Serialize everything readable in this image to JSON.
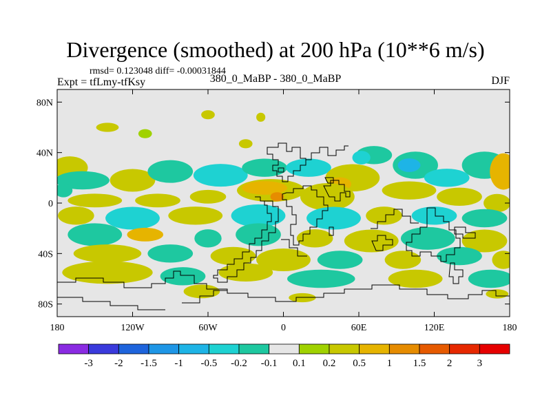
{
  "header": {
    "title": "Divergence (smoothed) at 200 hPa (10**6 m/s)",
    "stats": "rmsd= 0.123048 diff= -0.00031844",
    "experiment": "Expt = tfLmy-tfKsy",
    "comparison": "380_0_MaBP - 380_0_MaBP",
    "season": "DJF"
  },
  "chart_data": {
    "type": "heatmap",
    "title": "Divergence (smoothed) at 200 hPa (10**6 m/s)",
    "x_ticks": [
      {
        "value": -180,
        "label": "180"
      },
      {
        "value": -120,
        "label": "120W"
      },
      {
        "value": -60,
        "label": "60W"
      },
      {
        "value": 0,
        "label": "0"
      },
      {
        "value": 60,
        "label": "60E"
      },
      {
        "value": 120,
        "label": "120E"
      },
      {
        "value": 180,
        "label": "180"
      }
    ],
    "y_ticks": [
      {
        "value": 80,
        "label": "80N"
      },
      {
        "value": 40,
        "label": "40N"
      },
      {
        "value": 0,
        "label": "0"
      },
      {
        "value": -40,
        "label": "40S"
      },
      {
        "value": -80,
        "label": "80S"
      }
    ],
    "xlim": [
      -180,
      180
    ],
    "ylim": [
      -90,
      90
    ],
    "colorbar": {
      "labels": [
        "-3",
        "-2",
        "-1.5",
        "-1",
        "-0.5",
        "-0.2",
        "-0.1",
        "0.1",
        "0.2",
        "0.5",
        "1",
        "1.5",
        "2",
        "3"
      ],
      "colors": [
        "#8a2be2",
        "#3a3adc",
        "#1e64dc",
        "#1e96e6",
        "#1eb4e6",
        "#1ed2d2",
        "#1ec8a0",
        "#e6e6e6",
        "#a0d200",
        "#c8c800",
        "#e6b400",
        "#e68c00",
        "#e65a00",
        "#e62800",
        "#e60000"
      ]
    },
    "regions": [
      {
        "lon": -60,
        "lat": 70,
        "rx": 3,
        "ry": 2,
        "level": 9
      },
      {
        "lon": -18,
        "lat": 68,
        "rx": 2,
        "ry": 2,
        "level": 9
      },
      {
        "lon": -140,
        "lat": 60,
        "rx": 5,
        "ry": 2,
        "level": 9
      },
      {
        "lon": -110,
        "lat": 55,
        "rx": 3,
        "ry": 2,
        "level": 8
      },
      {
        "lon": -30,
        "lat": 47,
        "rx": 3,
        "ry": 2,
        "level": 9
      },
      {
        "lon": 72,
        "lat": 38,
        "rx": 8,
        "ry": 4,
        "level": 6
      },
      {
        "lon": 62,
        "lat": 36,
        "rx": 4,
        "ry": 3,
        "level": 5
      },
      {
        "lon": 105,
        "lat": 30,
        "rx": 10,
        "ry": 6,
        "level": 6
      },
      {
        "lon": 100,
        "lat": 30,
        "rx": 5,
        "ry": 3,
        "level": 4
      },
      {
        "lon": 160,
        "lat": 30,
        "rx": 10,
        "ry": 6,
        "level": 6
      },
      {
        "lon": 130,
        "lat": 20,
        "rx": 10,
        "ry": 4,
        "level": 5
      },
      {
        "lon": 175,
        "lat": 25,
        "rx": 6,
        "ry": 8,
        "level": 10
      },
      {
        "lon": -170,
        "lat": 28,
        "rx": 8,
        "ry": 5,
        "level": 9
      },
      {
        "lon": -160,
        "lat": 18,
        "rx": 12,
        "ry": 4,
        "level": 6
      },
      {
        "lon": -120,
        "lat": 18,
        "rx": 10,
        "ry": 5,
        "level": 9
      },
      {
        "lon": -90,
        "lat": 25,
        "rx": 10,
        "ry": 5,
        "level": 6
      },
      {
        "lon": -50,
        "lat": 22,
        "rx": 12,
        "ry": 5,
        "level": 5
      },
      {
        "lon": -15,
        "lat": 28,
        "rx": 10,
        "ry": 4,
        "level": 6
      },
      {
        "lon": 20,
        "lat": 28,
        "rx": 10,
        "ry": 4,
        "level": 5
      },
      {
        "lon": 55,
        "lat": 20,
        "rx": 12,
        "ry": 6,
        "level": 9
      },
      {
        "lon": 45,
        "lat": 15,
        "rx": 5,
        "ry": 3,
        "level": 10
      },
      {
        "lon": -10,
        "lat": 10,
        "rx": 15,
        "ry": 5,
        "level": 9
      },
      {
        "lon": -15,
        "lat": 12,
        "rx": 10,
        "ry": 3,
        "level": 10
      },
      {
        "lon": -5,
        "lat": 5,
        "rx": 3,
        "ry": 2,
        "level": 11
      },
      {
        "lon": 35,
        "lat": 5,
        "rx": 12,
        "ry": 6,
        "level": 9
      },
      {
        "lon": 100,
        "lat": 10,
        "rx": 12,
        "ry": 4,
        "level": 9
      },
      {
        "lon": 140,
        "lat": 5,
        "rx": 10,
        "ry": 4,
        "level": 9
      },
      {
        "lon": 170,
        "lat": 0,
        "rx": 6,
        "ry": 4,
        "level": 9
      },
      {
        "lon": -150,
        "lat": 2,
        "rx": 12,
        "ry": 3,
        "level": 9
      },
      {
        "lon": -100,
        "lat": 2,
        "rx": 10,
        "ry": 3,
        "level": 9
      },
      {
        "lon": -60,
        "lat": 5,
        "rx": 8,
        "ry": 3,
        "level": 9
      },
      {
        "lon": -175,
        "lat": 10,
        "rx": 4,
        "ry": 3,
        "level": 6
      },
      {
        "lon": -165,
        "lat": -10,
        "rx": 8,
        "ry": 4,
        "level": 9
      },
      {
        "lon": -120,
        "lat": -12,
        "rx": 12,
        "ry": 5,
        "level": 5
      },
      {
        "lon": -70,
        "lat": -10,
        "rx": 12,
        "ry": 4,
        "level": 9
      },
      {
        "lon": -20,
        "lat": -10,
        "rx": 12,
        "ry": 5,
        "level": 5
      },
      {
        "lon": 40,
        "lat": -12,
        "rx": 12,
        "ry": 5,
        "level": 5
      },
      {
        "lon": 80,
        "lat": -10,
        "rx": 8,
        "ry": 4,
        "level": 9
      },
      {
        "lon": 120,
        "lat": -10,
        "rx": 10,
        "ry": 4,
        "level": 5
      },
      {
        "lon": 160,
        "lat": -12,
        "rx": 10,
        "ry": 4,
        "level": 6
      },
      {
        "lon": -150,
        "lat": -25,
        "rx": 12,
        "ry": 5,
        "level": 6
      },
      {
        "lon": -110,
        "lat": -25,
        "rx": 8,
        "ry": 3,
        "level": 10
      },
      {
        "lon": -60,
        "lat": -28,
        "rx": 6,
        "ry": 4,
        "level": 6
      },
      {
        "lon": -20,
        "lat": -25,
        "rx": 10,
        "ry": 5,
        "level": 6
      },
      {
        "lon": 25,
        "lat": -28,
        "rx": 8,
        "ry": 4,
        "level": 9
      },
      {
        "lon": 70,
        "lat": -30,
        "rx": 12,
        "ry": 5,
        "level": 9
      },
      {
        "lon": 115,
        "lat": -28,
        "rx": 12,
        "ry": 5,
        "level": 6
      },
      {
        "lon": 160,
        "lat": -30,
        "rx": 10,
        "ry": 5,
        "level": 9
      },
      {
        "lon": -140,
        "lat": -40,
        "rx": 15,
        "ry": 4,
        "level": 9
      },
      {
        "lon": -90,
        "lat": -40,
        "rx": 10,
        "ry": 4,
        "level": 6
      },
      {
        "lon": -40,
        "lat": -42,
        "rx": 10,
        "ry": 4,
        "level": 9
      },
      {
        "lon": 0,
        "lat": -45,
        "rx": 12,
        "ry": 5,
        "level": 9
      },
      {
        "lon": 45,
        "lat": -45,
        "rx": 10,
        "ry": 4,
        "level": 6
      },
      {
        "lon": 95,
        "lat": -45,
        "rx": 8,
        "ry": 4,
        "level": 9
      },
      {
        "lon": 140,
        "lat": -42,
        "rx": 10,
        "ry": 4,
        "level": 6
      },
      {
        "lon": 175,
        "lat": -45,
        "rx": 5,
        "ry": 4,
        "level": 9
      },
      {
        "lon": -140,
        "lat": -55,
        "rx": 20,
        "ry": 5,
        "level": 9
      },
      {
        "lon": -80,
        "lat": -58,
        "rx": 10,
        "ry": 4,
        "level": 6
      },
      {
        "lon": -30,
        "lat": -55,
        "rx": 12,
        "ry": 4,
        "level": 9
      },
      {
        "lon": 30,
        "lat": -60,
        "rx": 15,
        "ry": 4,
        "level": 6
      },
      {
        "lon": 105,
        "lat": -60,
        "rx": 12,
        "ry": 4,
        "level": 9
      },
      {
        "lon": 165,
        "lat": -60,
        "rx": 10,
        "ry": 4,
        "level": 6
      },
      {
        "lon": -65,
        "lat": -70,
        "rx": 8,
        "ry": 3,
        "level": 9
      },
      {
        "lon": 15,
        "lat": -75,
        "rx": 6,
        "ry": 2,
        "level": 9
      },
      {
        "lon": 170,
        "lat": -72,
        "rx": 5,
        "ry": 2,
        "level": 9
      }
    ]
  }
}
